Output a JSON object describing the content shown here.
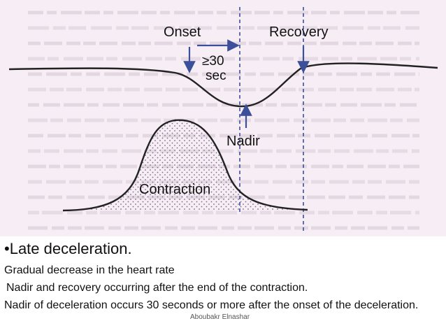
{
  "figure": {
    "labels": {
      "onset": "Onset",
      "recovery": "Recovery",
      "duration_line1": "≥30",
      "duration_line2": "sec",
      "nadir": "Nadir",
      "contraction": "Contraction"
    },
    "colors": {
      "background_tint": "#f7eef5",
      "curve": "#222222",
      "dashed_lines": "#3c4f9a",
      "arrows": "#3c4f9a",
      "stipple": "#7a6a8a"
    }
  },
  "caption": {
    "title": "•Late deceleration.",
    "lines": [
      "Gradual decrease in the heart rate",
      " Nadir and recovery occurring after the end of the contraction.",
      "Nadir of deceleration occurs 30 seconds or more after the onset of the deceleration."
    ],
    "watermark": "Aboubakr Elnashar"
  }
}
